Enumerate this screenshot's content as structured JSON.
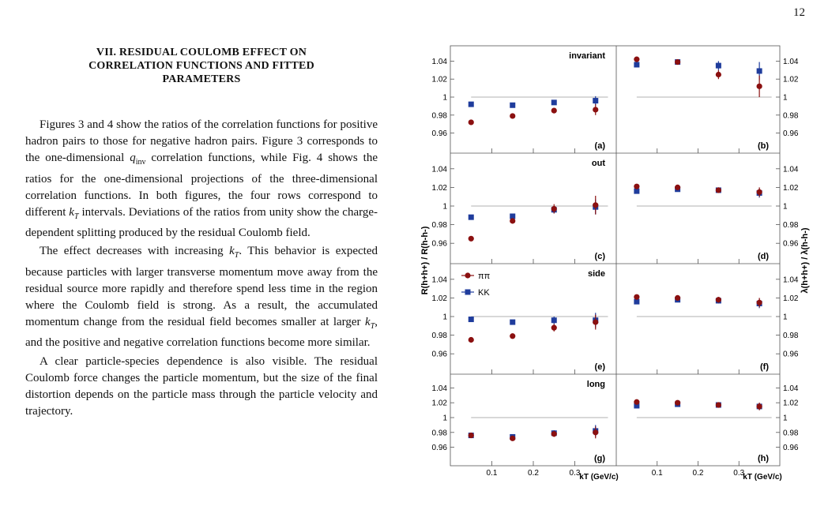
{
  "page_number": "12",
  "section": {
    "number": "VII.",
    "title_line1": "VII.   RESIDUAL COULOMB EFFECT ON",
    "title_line2": "CORRELATION FUNCTIONS AND FITTED",
    "title_line3": "PARAMETERS"
  },
  "paragraphs": [
    "Figures 3 and 4 show the ratios of the correlation functions for positive hadron pairs to those for negative hadron pairs. Figure 3 corresponds to the one-dimensional q_inv correlation functions, while Fig. 4 shows the ratios for the one-dimensional projections of the three-dimensional correlation functions. In both figures, the four rows correspond to different k_T intervals. Deviations of the ratios from unity show the charge-dependent splitting produced by the residual Coulomb field.",
    "The effect decreases with increasing k_T. This behavior is expected because particles with larger transverse momentum move away from the residual source more rapidly and therefore spend less time in the region where the Coulomb field is strong. As a result, the accumulated momentum change from the residual field becomes smaller at larger k_T, and the positive and negative correlation functions become more similar.",
    "A clear particle-species dependence is also visible. The residual Coulomb force changes the particle momentum, but the size of the final distortion depends on the particle mass through the particle velocity and trajectory."
  ],
  "chart_data": {
    "type": "scatter",
    "y_axis_left": "R(h+h+) / R(h-h-)",
    "y_axis_right": "λ(h+h+) / λ(h-h-)",
    "x_axis_label": "k_T (GeV/c)",
    "x_ticks": [
      "0.1",
      "0.2",
      "0.3"
    ],
    "y_ticks": [
      "0.96",
      "0.98",
      "1",
      "1.02",
      "1.04"
    ],
    "xlim": [
      0.0,
      0.4
    ],
    "ylim": [
      0.95,
      1.05
    ],
    "legend": [
      "ππ",
      "KK"
    ],
    "colors": {
      "pi": "#8b1010",
      "k": "#1f3c9c"
    },
    "x": [
      0.05,
      0.15,
      0.25,
      0.35
    ],
    "panels": [
      {
        "label": "(a)",
        "row_title": "invariant",
        "side": "R",
        "pi": [
          0.972,
          0.979,
          0.985,
          0.986
        ],
        "pi_err": [
          0.001,
          0.001,
          0.002,
          0.006
        ],
        "k": [
          0.992,
          0.991,
          0.994,
          0.996
        ],
        "k_err": [
          0.001,
          0.001,
          0.002,
          0.005
        ]
      },
      {
        "label": "(b)",
        "row_title": "",
        "side": "lambda",
        "pi": [
          1.042,
          1.039,
          1.025,
          1.012
        ],
        "pi_err": [
          0.001,
          0.003,
          0.005,
          0.012
        ],
        "k": [
          1.036,
          1.039,
          1.035,
          1.029
        ],
        "k_err": [
          0.001,
          0.003,
          0.005,
          0.01
        ]
      },
      {
        "label": "(c)",
        "row_title": "out",
        "side": "R",
        "pi": [
          0.965,
          0.984,
          0.997,
          1.001
        ],
        "pi_err": [
          0.001,
          0.002,
          0.005,
          0.01
        ],
        "k": [
          0.988,
          0.989,
          0.996,
          0.999
        ],
        "k_err": [
          0.001,
          0.002,
          0.004,
          0.008
        ]
      },
      {
        "label": "(d)",
        "row_title": "",
        "side": "lambda",
        "pi": [
          1.021,
          1.02,
          1.017,
          1.015
        ],
        "pi_err": [
          0.001,
          0.002,
          0.003,
          0.005
        ],
        "k": [
          1.016,
          1.018,
          1.017,
          1.014
        ],
        "k_err": [
          0.001,
          0.002,
          0.003,
          0.005
        ]
      },
      {
        "label": "(e)",
        "row_title": "side",
        "side": "R",
        "pi": [
          0.975,
          0.979,
          0.988,
          0.994
        ],
        "pi_err": [
          0.001,
          0.001,
          0.004,
          0.008
        ],
        "k": [
          0.997,
          0.994,
          0.996,
          0.996
        ],
        "k_err": [
          0.001,
          0.002,
          0.004,
          0.008
        ]
      },
      {
        "label": "(f)",
        "row_title": "",
        "side": "lambda",
        "pi": [
          1.021,
          1.02,
          1.018,
          1.015
        ],
        "pi_err": [
          0.001,
          0.002,
          0.003,
          0.005
        ],
        "k": [
          1.016,
          1.018,
          1.017,
          1.014
        ],
        "k_err": [
          0.001,
          0.002,
          0.003,
          0.005
        ]
      },
      {
        "label": "(g)",
        "row_title": "long",
        "side": "R",
        "pi": [
          0.976,
          0.972,
          0.978,
          0.98
        ],
        "pi_err": [
          0.001,
          0.002,
          0.004,
          0.008
        ],
        "k": [
          0.976,
          0.974,
          0.979,
          0.982
        ],
        "k_err": [
          0.001,
          0.002,
          0.004,
          0.008
        ]
      },
      {
        "label": "(h)",
        "row_title": "",
        "side": "lambda",
        "pi": [
          1.021,
          1.02,
          1.017,
          1.015
        ],
        "pi_err": [
          0.001,
          0.002,
          0.003,
          0.005
        ],
        "k": [
          1.016,
          1.018,
          1.017,
          1.015
        ],
        "k_err": [
          0.001,
          0.002,
          0.003,
          0.005
        ]
      }
    ]
  }
}
